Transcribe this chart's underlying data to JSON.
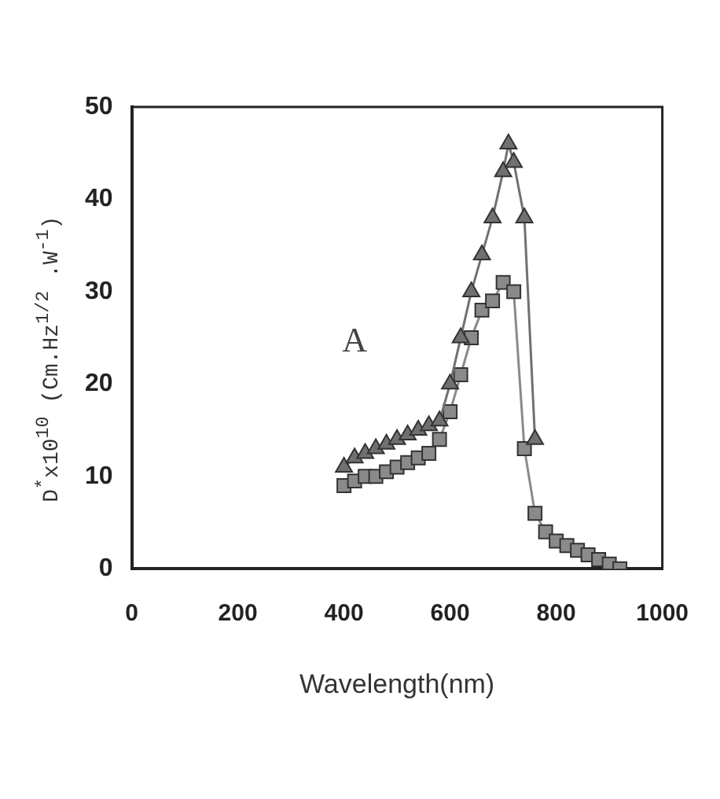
{
  "chart_data": {
    "type": "line",
    "xlabel": "Wavelength(nm)",
    "ylabel": "D$^{*}$x10$^{10}$ (Cm.Hz$^{1/2}$ .W$^{-1}$)",
    "annotations": [
      "A"
    ],
    "xlim": [
      0,
      1000
    ],
    "xticks": [
      0,
      200,
      400,
      600,
      800,
      1000
    ],
    "ylim": [
      0,
      50
    ],
    "yticks": [
      0,
      10,
      20,
      30,
      40,
      50
    ],
    "grid": false,
    "legend": false,
    "line_style": "solid",
    "series": [
      {
        "color": "#707070",
        "marker": "triangle",
        "x": [
          400,
          420,
          440,
          460,
          480,
          500,
          520,
          540,
          560,
          580,
          600,
          620,
          640,
          660,
          680,
          700,
          710,
          720,
          740,
          760
        ],
        "values": [
          11,
          12,
          12.5,
          13,
          13.5,
          14,
          14.5,
          15,
          15.5,
          16,
          20,
          25,
          30,
          34,
          38,
          43,
          46,
          44,
          38,
          14
        ]
      },
      {
        "color": "#8a8a8a",
        "marker": "square",
        "x": [
          400,
          420,
          440,
          460,
          480,
          500,
          520,
          540,
          560,
          580,
          600,
          620,
          640,
          660,
          680,
          700,
          720,
          740,
          760,
          780,
          800,
          820,
          840,
          860,
          880,
          900,
          920
        ],
        "values": [
          9,
          9.5,
          10,
          10,
          10.5,
          11,
          11.5,
          12,
          12.5,
          14,
          17,
          21,
          25,
          28,
          29,
          31,
          30,
          13,
          6,
          4,
          3,
          2.5,
          2,
          1.5,
          1,
          0.5,
          0
        ]
      }
    ]
  }
}
